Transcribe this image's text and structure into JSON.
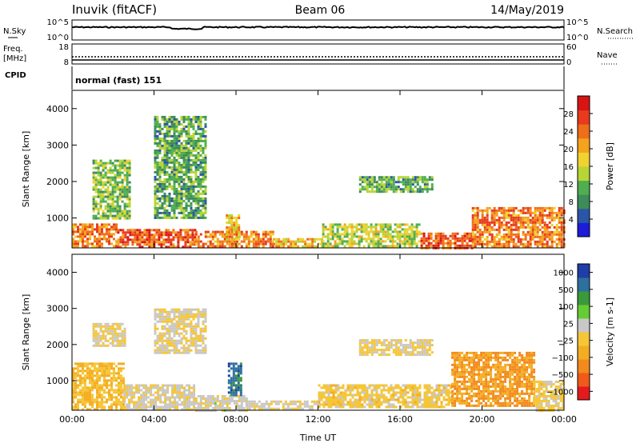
{
  "header": {
    "station": "Inuvik (fitACF)",
    "beam": "Beam 06",
    "date": "14/May/2019"
  },
  "panels": {
    "nsky": {
      "label": "N.Sky",
      "right_label": "N.Search",
      "ticks_left": [
        "10^5",
        "10^0"
      ],
      "ticks_right": [
        "10^5",
        "10^0"
      ]
    },
    "freq": {
      "label_top": "Freq.",
      "label_bottom": "[MHz]",
      "right_label": "Nave",
      "ticks_left": [
        "18",
        "8"
      ],
      "ticks_right": [
        "60",
        "0"
      ]
    },
    "cpid": {
      "label": "CPID",
      "value": "normal (fast) 151"
    }
  },
  "colors": {
    "power": [
      "#1c1cd9",
      "#2a56a8",
      "#3d8c5a",
      "#4fae4f",
      "#b8d435",
      "#f0d230",
      "#f5a21c",
      "#ef6e1a",
      "#e83a1c",
      "#d81414"
    ],
    "velocity": [
      "#e41a1c",
      "#ef5a1a",
      "#f28a1e",
      "#f4ad22",
      "#f6c637",
      "#c8c8c8",
      "#66cc33",
      "#3a9a3a",
      "#2d6f9e",
      "#1e3ea8"
    ]
  },
  "chart_data": [
    {
      "type": "heatmap",
      "title": "",
      "xlabel": "",
      "ylabel": "Slant Range [km]",
      "xlim": [
        0,
        24
      ],
      "ylim": [
        180,
        4500
      ],
      "x_ticks": [
        "00:00",
        "04:00",
        "08:00",
        "12:00",
        "16:00",
        "20:00",
        "00:00"
      ],
      "y_ticks": [
        1000,
        2000,
        3000,
        4000
      ],
      "colorbar": {
        "label": "Power [dB]",
        "ticks": [
          "4",
          "8",
          "12",
          "16",
          "20",
          "24",
          "28"
        ],
        "range": [
          0,
          30
        ]
      },
      "regions": [
        {
          "t": [
            0.0,
            2.2
          ],
          "r": [
            200,
            850
          ],
          "value": 22
        },
        {
          "t": [
            2.2,
            6.0
          ],
          "r": [
            200,
            700
          ],
          "value": 24
        },
        {
          "t": [
            6.0,
            9.8
          ],
          "r": [
            200,
            650
          ],
          "value": 22
        },
        {
          "t": [
            9.8,
            12.2
          ],
          "r": [
            200,
            450
          ],
          "value": 18
        },
        {
          "t": [
            12.2,
            17.0
          ],
          "r": [
            250,
            850
          ],
          "value": 14
        },
        {
          "t": [
            17.0,
            19.5
          ],
          "r": [
            200,
            600
          ],
          "value": 24
        },
        {
          "t": [
            19.5,
            24.0
          ],
          "r": [
            200,
            1300
          ],
          "value": 22
        },
        {
          "t": [
            1.0,
            2.8
          ],
          "r": [
            1000,
            2600
          ],
          "value": 12
        },
        {
          "t": [
            4.0,
            6.5
          ],
          "r": [
            1000,
            3800
          ],
          "value": 10
        },
        {
          "t": [
            7.5,
            8.2
          ],
          "r": [
            400,
            1100
          ],
          "value": 18
        },
        {
          "t": [
            14.0,
            17.6
          ],
          "r": [
            1750,
            2150
          ],
          "value": 10
        }
      ]
    },
    {
      "type": "heatmap",
      "title": "",
      "xlabel": "Time UT",
      "ylabel": "Slant Range [km]",
      "xlim": [
        0,
        24
      ],
      "ylim": [
        180,
        4500
      ],
      "x_ticks": [
        "00:00",
        "04:00",
        "08:00",
        "12:00",
        "16:00",
        "20:00",
        "00:00"
      ],
      "y_ticks": [
        1000,
        2000,
        3000,
        4000
      ],
      "colorbar": {
        "label": "Velocity [m s-1]",
        "ticks": [
          "1000",
          "500",
          "100",
          "25",
          "−25",
          "−100",
          "−500",
          "−1000"
        ],
        "range": [
          -1000,
          1000
        ]
      },
      "regions": [
        {
          "t": [
            0.0,
            2.5
          ],
          "r": [
            200,
            1500
          ],
          "value": -200
        },
        {
          "t": [
            2.5,
            6.0
          ],
          "r": [
            200,
            900
          ],
          "value": 50
        },
        {
          "t": [
            6.0,
            8.5
          ],
          "r": [
            200,
            600
          ],
          "value": 60
        },
        {
          "t": [
            7.6,
            8.3
          ],
          "r": [
            600,
            1500
          ],
          "value": 700
        },
        {
          "t": [
            8.5,
            12.0
          ],
          "r": [
            200,
            450
          ],
          "value": 40
        },
        {
          "t": [
            12.0,
            18.5
          ],
          "r": [
            250,
            900
          ],
          "value": -80
        },
        {
          "t": [
            18.5,
            22.5
          ],
          "r": [
            300,
            1800
          ],
          "value": -400
        },
        {
          "t": [
            22.5,
            24.0
          ],
          "r": [
            200,
            1000
          ],
          "value": -60
        },
        {
          "t": [
            1.0,
            2.6
          ],
          "r": [
            2000,
            2600
          ],
          "value": 0
        },
        {
          "t": [
            4.0,
            6.5
          ],
          "r": [
            1800,
            3000
          ],
          "value": 0
        },
        {
          "t": [
            14.0,
            17.6
          ],
          "r": [
            1750,
            2150
          ],
          "value": 0
        }
      ]
    }
  ]
}
